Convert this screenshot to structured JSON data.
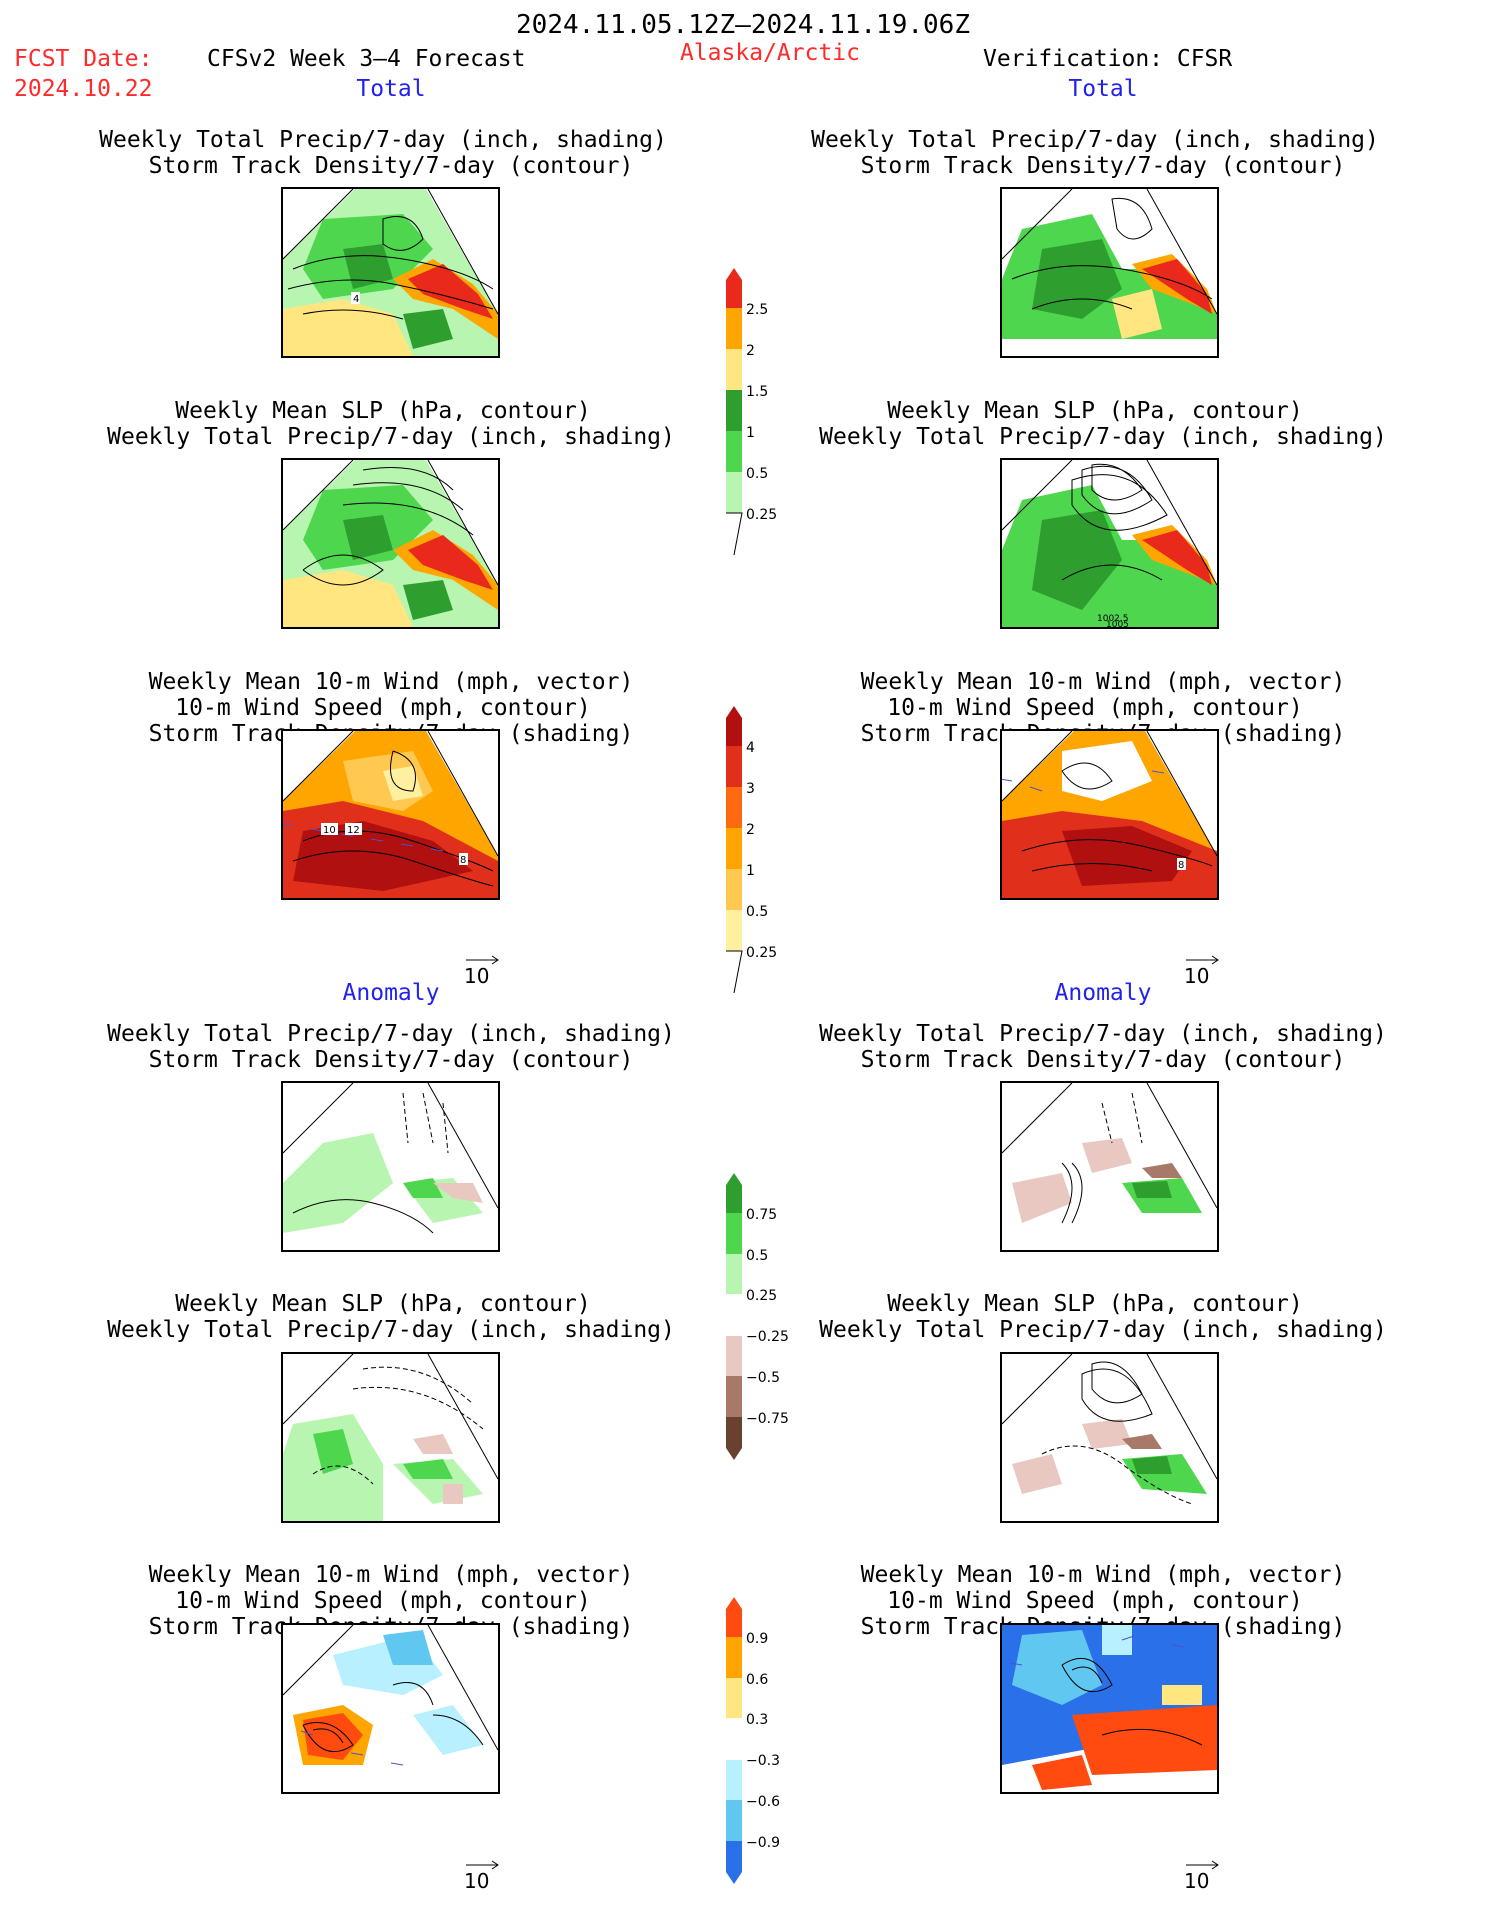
{
  "header": {
    "date_range": "2024.11.05.12Z–2024.11.19.06Z",
    "fcst_date_label": "FCST Date:",
    "fcst_date_value": "2024.10.22",
    "model": "CFSv2 Week 3–4 Forecast",
    "region": "Alaska/Arctic",
    "verification": "Verification: CFSR"
  },
  "sections": {
    "total": "Total",
    "anomaly": "Anomaly"
  },
  "titles": {
    "precip_track": [
      "Weekly Total Precip/7-day (inch, shading)",
      "Storm Track Density/7-day (contour)"
    ],
    "slp_precip": [
      "Weekly Mean SLP (hPa, contour)",
      "Weekly Total Precip/7-day (inch, shading)"
    ],
    "wind_track": [
      "Weekly Mean 10-m Wind (mph, vector)",
      "10-m Wind Speed (mph, contour)",
      "Storm Track Density/7-day (shading)"
    ]
  },
  "panel_labels": {
    "left_total_precip": "4",
    "left_total_wind_a": "10",
    "left_total_wind_b": "12",
    "left_total_wind_c": "8",
    "right_total_slp_a": "1002.5",
    "right_total_slp_b": "1005",
    "right_total_wind": "8"
  },
  "vector_reference": "10",
  "colorbars": {
    "precip_total": {
      "labels": [
        "2.5",
        "2",
        "1.5",
        "1",
        "0.5",
        "0.25"
      ],
      "colors": [
        "#e8291c",
        "#ffa500",
        "#ffe680",
        "#2e9e2e",
        "#4fd64f",
        "#b8f5b0"
      ]
    },
    "track_total": {
      "labels": [
        "4",
        "3",
        "2",
        "1",
        "0.5",
        "0.25"
      ],
      "colors": [
        "#b01010",
        "#e0301c",
        "#ff6a10",
        "#ffa500",
        "#ffc850",
        "#fff0a0"
      ]
    },
    "precip_anomaly": {
      "labels": [
        "0.75",
        "0.5",
        "0.25",
        "−0.25",
        "−0.5",
        "−0.75"
      ],
      "colors": [
        "#2e9e2e",
        "#4fd64f",
        "#b8f5b0",
        "#e8c8c0",
        "#a87868",
        "#6a4030"
      ]
    },
    "track_anomaly": {
      "labels": [
        "0.9",
        "0.6",
        "0.3",
        "−0.3",
        "−0.6",
        "−0.9"
      ],
      "colors": [
        "#ff4a10",
        "#ffa500",
        "#ffe680",
        "#b8f0ff",
        "#60c8f0",
        "#2a70e8"
      ]
    }
  }
}
